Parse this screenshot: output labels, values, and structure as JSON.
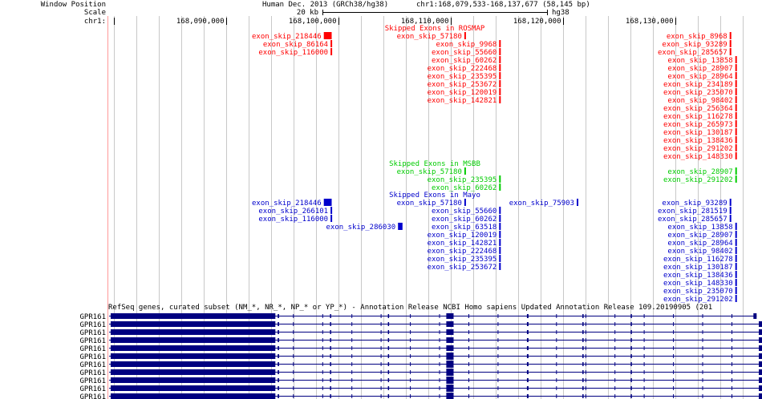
{
  "header": {
    "labels": [
      "Window Position",
      "Scale",
      "chr1:"
    ],
    "assembly": "Human Dec. 2013 (GRCh38/hg38)",
    "position": "chr1:168,079,533-168,137,677 (58,145 bp)",
    "scale_text": "20 kb",
    "scale_assembly": "hg38",
    "ruler_ticks": [
      "168,090,000",
      "168,100,000",
      "168,110,000",
      "168,120,000",
      "168,130,000"
    ]
  },
  "colors": {
    "rosmap": "#ff0000",
    "msbb": "#00cc00",
    "mayo": "#0000cc",
    "refseq": "#000080",
    "grid": "#c8c8c8",
    "separator": "#ff9999"
  },
  "tracks": {
    "rosmap": {
      "title": "Skipped Exons in ROSMAP",
      "items": [
        {
          "name": "exon_skip_218446",
          "row": 0,
          "start": 168098700,
          "end": 168099400
        },
        {
          "name": "exon_skip_57180",
          "row": 0,
          "start": 168111200,
          "end": 168111250
        },
        {
          "name": "exon_skip_8968",
          "row": 0,
          "start": 168134800,
          "end": 168134850
        },
        {
          "name": "exon_skip_86164",
          "row": 1,
          "start": 168099300,
          "end": 168099350
        },
        {
          "name": "exon_skip_9968",
          "row": 1,
          "start": 168114300,
          "end": 168114350
        },
        {
          "name": "exon_skip_93289",
          "row": 1,
          "start": 168134800,
          "end": 168134850
        },
        {
          "name": "exon_skip_116000",
          "row": 2,
          "start": 168099300,
          "end": 168099350
        },
        {
          "name": "exon_skip_55660",
          "row": 2,
          "start": 168114300,
          "end": 168114350
        },
        {
          "name": "exon_skip_285657",
          "row": 2,
          "start": 168134800,
          "end": 168134850
        },
        {
          "name": "exon_skip_60262",
          "row": 3,
          "start": 168114300,
          "end": 168114350
        },
        {
          "name": "exon_skip_13858",
          "row": 3,
          "start": 168135300,
          "end": 168135350
        },
        {
          "name": "exon_skip_222468",
          "row": 4,
          "start": 168114300,
          "end": 168114350
        },
        {
          "name": "exon_skip_28907",
          "row": 4,
          "start": 168135300,
          "end": 168135350
        },
        {
          "name": "exon_skip_235395",
          "row": 5,
          "start": 168114300,
          "end": 168114350
        },
        {
          "name": "exon_skip_28964",
          "row": 5,
          "start": 168135300,
          "end": 168135350
        },
        {
          "name": "exon_skip_253672",
          "row": 6,
          "start": 168114300,
          "end": 168114350
        },
        {
          "name": "exon_skip_234189",
          "row": 6,
          "start": 168135300,
          "end": 168135350
        },
        {
          "name": "exon_skip_120019",
          "row": 7,
          "start": 168114300,
          "end": 168114350
        },
        {
          "name": "exon_skip_235070",
          "row": 7,
          "start": 168135300,
          "end": 168135350
        },
        {
          "name": "exon_skip_142821",
          "row": 8,
          "start": 168114300,
          "end": 168114350
        },
        {
          "name": "exon_skip_98402",
          "row": 8,
          "start": 168135300,
          "end": 168135350
        },
        {
          "name": "exon_skip_256364",
          "row": 9,
          "start": 168135300,
          "end": 168135350
        },
        {
          "name": "exon_skip_116278",
          "row": 10,
          "start": 168135300,
          "end": 168135350
        },
        {
          "name": "exon_skip_265973",
          "row": 11,
          "start": 168135300,
          "end": 168135350
        },
        {
          "name": "exon_skip_130187",
          "row": 12,
          "start": 168135300,
          "end": 168135350
        },
        {
          "name": "exon_skip_138436",
          "row": 13,
          "start": 168135300,
          "end": 168135350
        },
        {
          "name": "exon_skip_291202",
          "row": 14,
          "start": 168135300,
          "end": 168135350
        },
        {
          "name": "exon_skip_148330",
          "row": 15,
          "start": 168135300,
          "end": 168135350
        }
      ]
    },
    "msbb": {
      "title": "Skipped Exons in MSBB",
      "items": [
        {
          "name": "exon_skip_57180",
          "row": 0,
          "start": 168111200,
          "end": 168111250
        },
        {
          "name": "exon_skip_28907",
          "row": 0,
          "start": 168135300,
          "end": 168135350
        },
        {
          "name": "exon_skip_235395",
          "row": 1,
          "start": 168114300,
          "end": 168114350
        },
        {
          "name": "exon_skip_291202",
          "row": 1,
          "start": 168135300,
          "end": 168135350
        },
        {
          "name": "exon_skip_60262",
          "row": 2,
          "start": 168114300,
          "end": 168114350
        }
      ]
    },
    "mayo": {
      "title": "Skipped Exons in Mayo",
      "items": [
        {
          "name": "exon_skip_218446",
          "row": 0,
          "start": 168098700,
          "end": 168099400
        },
        {
          "name": "exon_skip_57180",
          "row": 0,
          "start": 168111200,
          "end": 168111250
        },
        {
          "name": "exon_skip_75903",
          "row": 0,
          "start": 168121200,
          "end": 168121250
        },
        {
          "name": "exon_skip_93289",
          "row": 0,
          "start": 168134800,
          "end": 168134850
        },
        {
          "name": "exon_skip_266101",
          "row": 1,
          "start": 168099300,
          "end": 168099350
        },
        {
          "name": "exon_skip_55660",
          "row": 1,
          "start": 168114300,
          "end": 168114350
        },
        {
          "name": "exon_skip_281519",
          "row": 1,
          "start": 168134800,
          "end": 168134850
        },
        {
          "name": "exon_skip_116000",
          "row": 2,
          "start": 168099300,
          "end": 168099350
        },
        {
          "name": "exon_skip_60262",
          "row": 2,
          "start": 168114300,
          "end": 168114350
        },
        {
          "name": "exon_skip_285657",
          "row": 2,
          "start": 168134800,
          "end": 168134850
        },
        {
          "name": "exon_skip_286030",
          "row": 3,
          "start": 168105300,
          "end": 168105700
        },
        {
          "name": "exon_skip_63518",
          "row": 3,
          "start": 168114300,
          "end": 168114350
        },
        {
          "name": "exon_skip_13858",
          "row": 3,
          "start": 168135300,
          "end": 168135350
        },
        {
          "name": "exon_skip_120019",
          "row": 4,
          "start": 168114300,
          "end": 168114350
        },
        {
          "name": "exon_skip_28907",
          "row": 4,
          "start": 168135300,
          "end": 168135350
        },
        {
          "name": "exon_skip_142821",
          "row": 5,
          "start": 168114300,
          "end": 168114350
        },
        {
          "name": "exon_skip_28964",
          "row": 5,
          "start": 168135300,
          "end": 168135350
        },
        {
          "name": "exon_skip_222468",
          "row": 6,
          "start": 168114300,
          "end": 168114350
        },
        {
          "name": "exon_skip_98402",
          "row": 6,
          "start": 168135300,
          "end": 168135350
        },
        {
          "name": "exon_skip_235395",
          "row": 7,
          "start": 168114300,
          "end": 168114350
        },
        {
          "name": "exon_skip_116278",
          "row": 7,
          "start": 168135300,
          "end": 168135350
        },
        {
          "name": "exon_skip_253672",
          "row": 8,
          "start": 168114300,
          "end": 168114350
        },
        {
          "name": "exon_skip_130187",
          "row": 8,
          "start": 168135300,
          "end": 168135350
        },
        {
          "name": "exon_skip_138436",
          "row": 9,
          "start": 168135300,
          "end": 168135350
        },
        {
          "name": "exon_skip_148330",
          "row": 10,
          "start": 168135300,
          "end": 168135350
        },
        {
          "name": "exon_skip_235070",
          "row": 11,
          "start": 168135300,
          "end": 168135350
        },
        {
          "name": "exon_skip_291202",
          "row": 12,
          "start": 168135300,
          "end": 168135350
        }
      ]
    },
    "refseq": {
      "title": "RefSeq genes, curated subset (NM_*, NR_*, NP_* or YP_*) - Annotation Release NCBI Homo sapiens Updated Annotation Release 109.20190905 (201",
      "gene_name": "GPR161",
      "transcript_count": 11
    }
  }
}
